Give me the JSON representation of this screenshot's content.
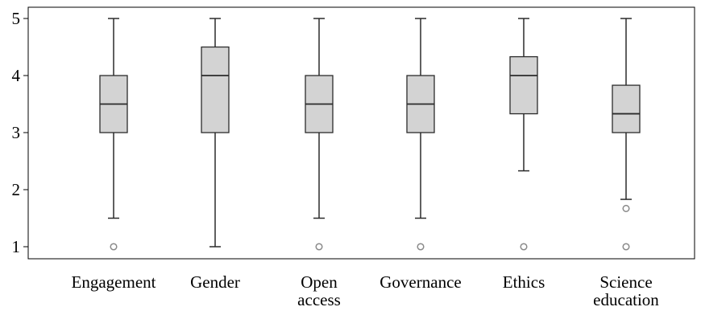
{
  "chart_data": {
    "type": "boxplot",
    "title": "",
    "xlabel": "",
    "ylabel": "",
    "ylim": [
      1,
      5
    ],
    "yticks": [
      "1",
      "2",
      "3",
      "4",
      "5"
    ],
    "grid": false,
    "categories": [
      [
        "Engagement"
      ],
      [
        "Gender"
      ],
      [
        "Open",
        "access"
      ],
      [
        "Governance"
      ],
      [
        "Ethics"
      ],
      [
        "Science",
        "education"
      ]
    ],
    "boxes": [
      {
        "whisker_low": 1.5,
        "q1": 3.0,
        "median": 3.5,
        "q3": 4.0,
        "whisker_high": 5.0,
        "outliers": [
          1.0
        ]
      },
      {
        "whisker_low": 1.0,
        "q1": 3.0,
        "median": 4.0,
        "q3": 4.5,
        "whisker_high": 5.0,
        "outliers": []
      },
      {
        "whisker_low": 1.5,
        "q1": 3.0,
        "median": 3.5,
        "q3": 4.0,
        "whisker_high": 5.0,
        "outliers": [
          1.0
        ]
      },
      {
        "whisker_low": 1.5,
        "q1": 3.0,
        "median": 3.5,
        "q3": 4.0,
        "whisker_high": 5.0,
        "outliers": [
          1.0
        ]
      },
      {
        "whisker_low": 2.33,
        "q1": 3.33,
        "median": 4.0,
        "q3": 4.33,
        "whisker_high": 5.0,
        "outliers": [
          1.0
        ]
      },
      {
        "whisker_low": 1.83,
        "q1": 3.0,
        "median": 3.33,
        "q3": 3.83,
        "whisker_high": 5.0,
        "outliers": [
          1.67,
          1.0
        ]
      }
    ],
    "colors": {
      "box_fill": "#d3d3d3",
      "stroke": "#2b2b2b",
      "outlier": "#8a8a8a",
      "axis": "#000000"
    }
  }
}
